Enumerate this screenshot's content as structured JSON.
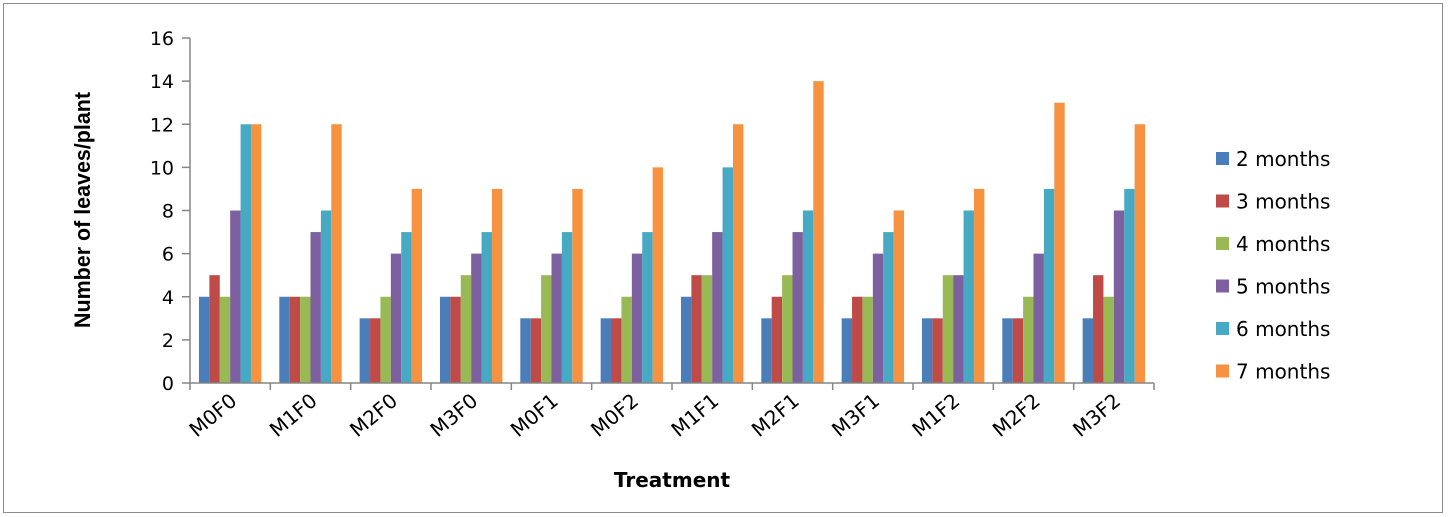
{
  "chart_data": {
    "type": "bar",
    "title": "",
    "xlabel": "Treatment",
    "ylabel": "Number of leaves/plant",
    "ylim": [
      0,
      16
    ],
    "yticks": [
      0,
      2,
      4,
      6,
      8,
      10,
      12,
      14,
      16
    ],
    "grid": false,
    "legend_position": "right",
    "categories": [
      "M0F0",
      "M1F0",
      "M2F0",
      "M3F0",
      "M0F1",
      "M0F2",
      "M1F1",
      "M2F1",
      "M3F1",
      "M1F2",
      "M2F2",
      "M3F2"
    ],
    "series": [
      {
        "name": "2 months",
        "color": "#4a7ebb",
        "values": [
          4,
          4,
          3,
          4,
          3,
          3,
          4,
          3,
          3,
          3,
          3,
          3
        ]
      },
      {
        "name": "3 months",
        "color": "#be4b48",
        "values": [
          5,
          4,
          3,
          4,
          3,
          3,
          5,
          4,
          4,
          3,
          3,
          5
        ]
      },
      {
        "name": "4 months",
        "color": "#98b954",
        "values": [
          4,
          4,
          4,
          5,
          5,
          4,
          5,
          5,
          4,
          5,
          4,
          4
        ]
      },
      {
        "name": "5 months",
        "color": "#7d60a0",
        "values": [
          8,
          7,
          6,
          6,
          6,
          6,
          7,
          7,
          6,
          5,
          6,
          8
        ]
      },
      {
        "name": "6 months",
        "color": "#46aac5",
        "values": [
          12,
          8,
          7,
          7,
          7,
          7,
          10,
          8,
          7,
          8,
          9,
          9
        ]
      },
      {
        "name": "7 months",
        "color": "#f69240",
        "values": [
          12,
          12,
          9,
          9,
          9,
          10,
          12,
          14,
          8,
          9,
          13,
          12
        ]
      }
    ]
  }
}
